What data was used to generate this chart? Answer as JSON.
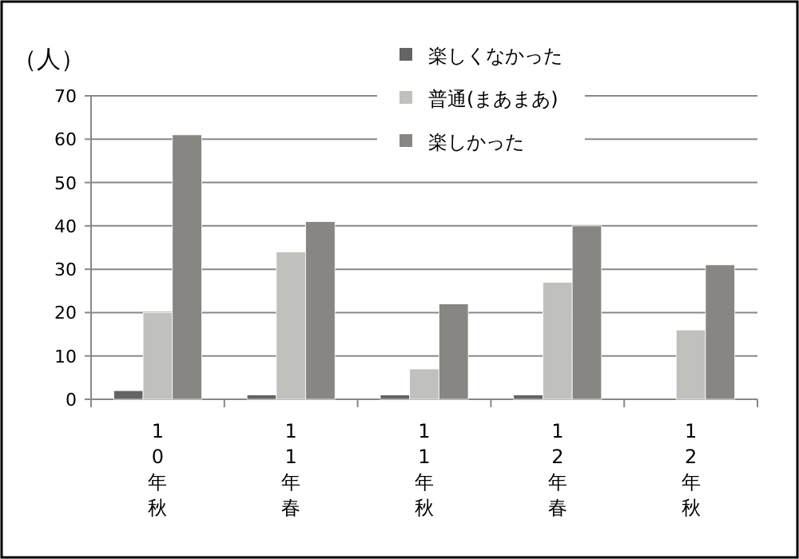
{
  "chart_data": {
    "type": "bar",
    "ylabel": "（人）",
    "categories": [
      "10年秋",
      "11年春",
      "11年秋",
      "12年春",
      "12年秋"
    ],
    "series": [
      {
        "name": "楽しくなかった",
        "color": "#646464",
        "values": [
          2,
          1,
          1,
          1,
          0
        ]
      },
      {
        "name": "普通(まあまあ)",
        "color": "#c0c0bc",
        "values": [
          20,
          34,
          7,
          27,
          16
        ]
      },
      {
        "name": "楽しかった",
        "color": "#878682",
        "values": [
          61,
          41,
          22,
          40,
          31
        ]
      }
    ],
    "ylim": [
      0,
      70
    ],
    "yticks": [
      0,
      10,
      20,
      30,
      40,
      50,
      60,
      70
    ],
    "grid": "y",
    "legend": "top"
  }
}
